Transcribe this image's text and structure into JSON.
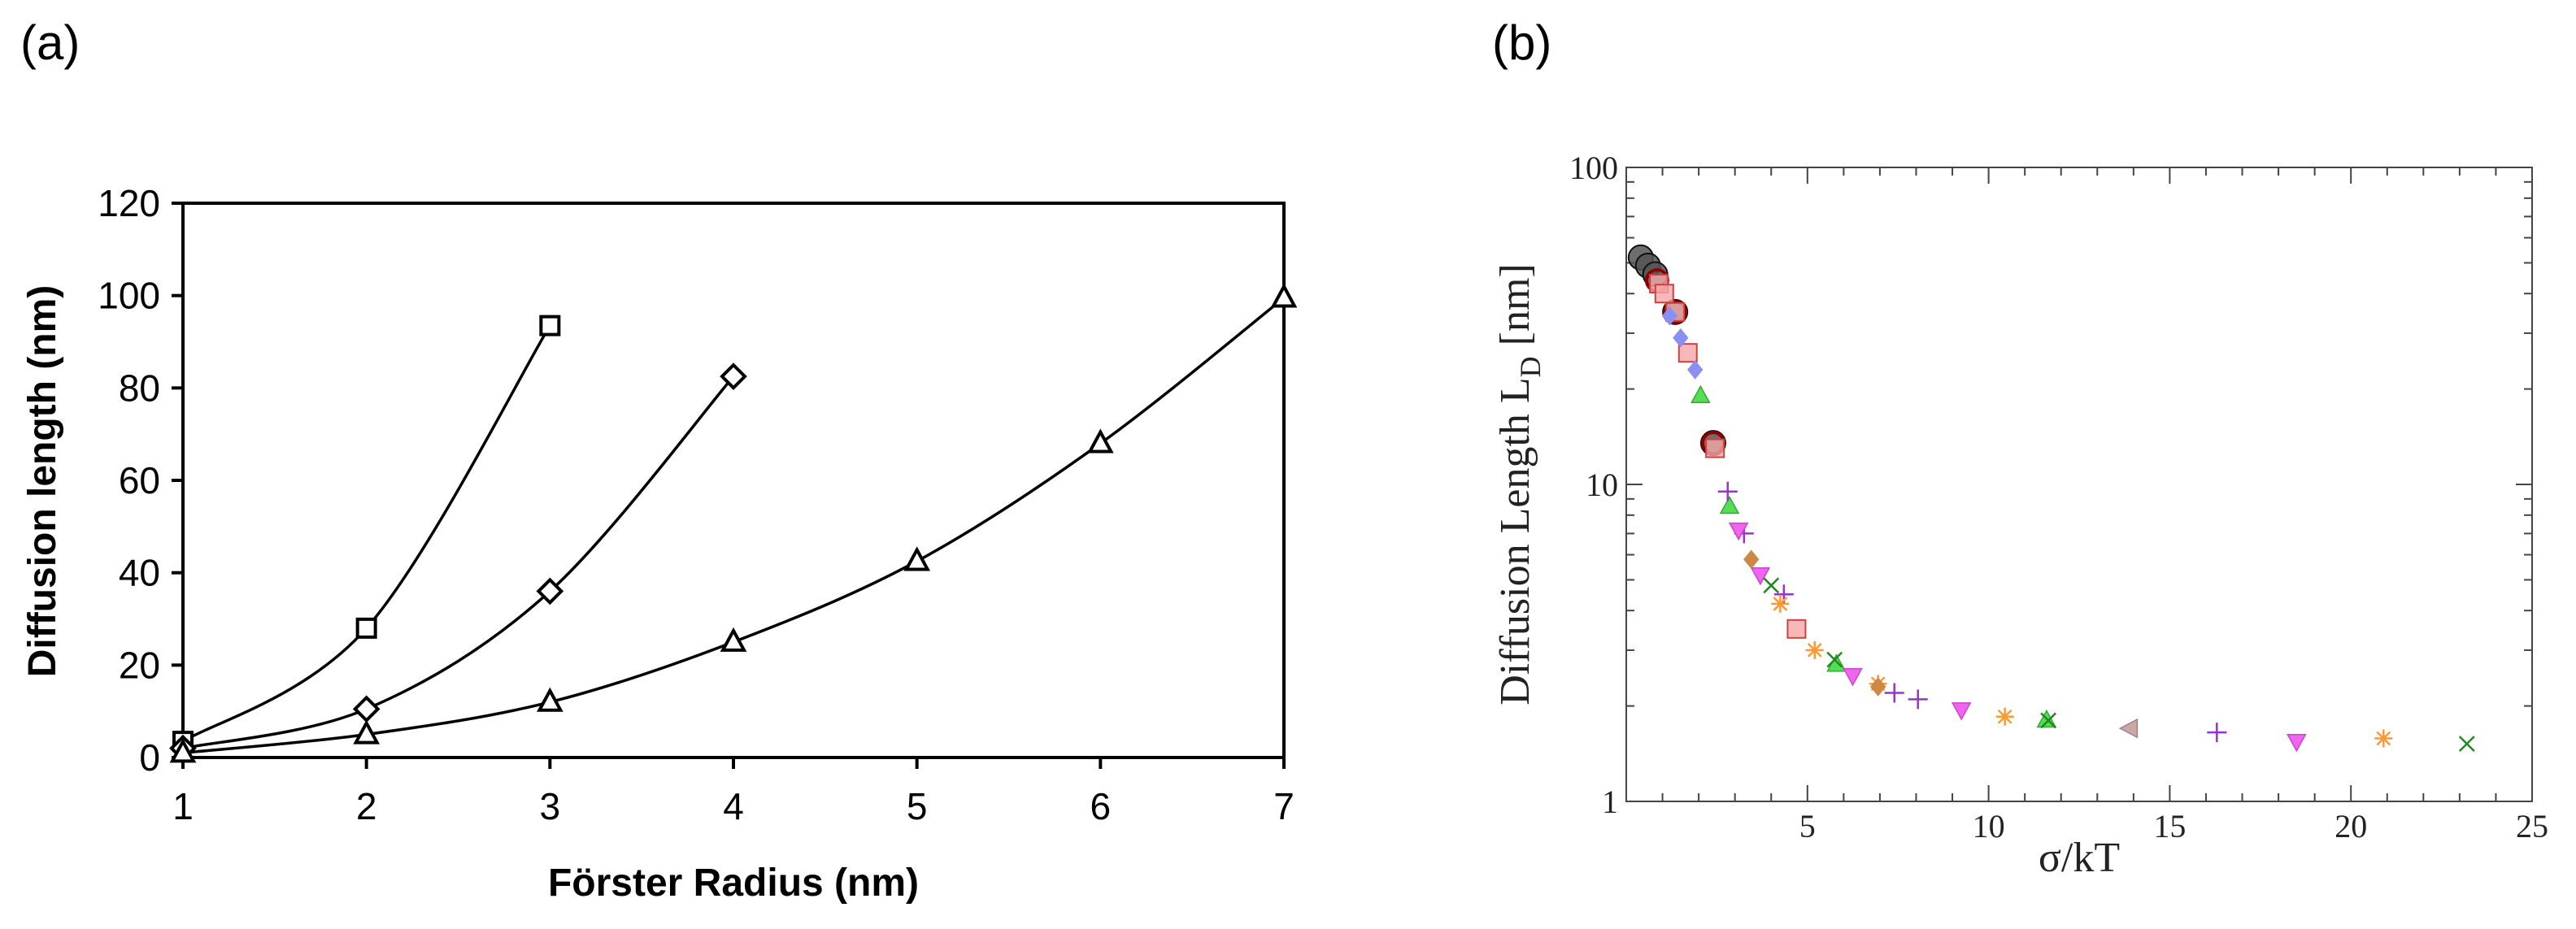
{
  "panels": {
    "a": {
      "label": "(a)"
    },
    "b": {
      "label": "(b)"
    }
  },
  "chart_data": [
    {
      "type": "line",
      "panel": "(a)",
      "xlabel": "Förster Radius (nm)",
      "ylabel": "Diffusion length (nm)",
      "xlim": [
        1,
        7
      ],
      "ylim": [
        0,
        120
      ],
      "xticks": [
        1,
        2,
        3,
        4,
        5,
        6,
        7
      ],
      "yticks": [
        0,
        20,
        40,
        60,
        80,
        100,
        120
      ],
      "grid": false,
      "series": [
        {
          "marker": "square",
          "x": [
            1,
            2,
            3
          ],
          "y": [
            3.5,
            28,
            93.5
          ]
        },
        {
          "marker": "diamond",
          "x": [
            1,
            2,
            3,
            4
          ],
          "y": [
            2,
            10.5,
            36,
            82.5
          ]
        },
        {
          "marker": "triangle",
          "x": [
            1,
            2,
            3,
            4,
            5,
            6,
            7
          ],
          "y": [
            1,
            5,
            12,
            25,
            42.5,
            68,
            99.5
          ]
        }
      ]
    },
    {
      "type": "scatter",
      "panel": "(b)",
      "xlabel": "σ/kT",
      "ylabel": "Diffusion Length L",
      "ylabel_subscript": "D",
      "ylabel_unit": "[nm]",
      "xlim": [
        0,
        25
      ],
      "ylim": [
        1,
        100
      ],
      "yscale": "log",
      "xticks": [
        5,
        10,
        15,
        20,
        25
      ],
      "yticks": [
        1,
        10,
        100
      ],
      "grid": false,
      "series": [
        {
          "marker": "circle",
          "color": "#555555",
          "x": [
            0.4,
            0.6,
            0.8,
            1.35,
            2.4
          ],
          "y": [
            52,
            49,
            46,
            35,
            13.5
          ]
        },
        {
          "marker": "circle-open",
          "color": "#8b0000",
          "x": [
            0.85,
            1.35,
            2.4
          ],
          "y": [
            44,
            35,
            13.5
          ]
        },
        {
          "marker": "square",
          "color": "#f4a6a6",
          "x": [
            0.9,
            1.05,
            1.35,
            1.7,
            2.45,
            4.7
          ],
          "y": [
            43,
            40,
            35,
            26,
            13,
            3.5
          ]
        },
        {
          "marker": "diamond",
          "color": "#8a8ff0",
          "x": [
            1.2,
            1.5,
            1.9
          ],
          "y": [
            34,
            29,
            23
          ]
        },
        {
          "marker": "triangle",
          "color": "#55dd55",
          "x": [
            2.05,
            2.85,
            5.8,
            11.6
          ],
          "y": [
            19,
            8.5,
            2.7,
            1.8
          ]
        },
        {
          "marker": "plus",
          "color": "#9933cc",
          "x": [
            2.8,
            3.25,
            4.35,
            7.4,
            8.05,
            16.3
          ],
          "y": [
            9.5,
            7,
            4.5,
            2.2,
            2.1,
            1.65
          ]
        },
        {
          "marker": "triangle-down",
          "color": "#ee66ee",
          "x": [
            3.1,
            3.7,
            6.25,
            9.25,
            18.5
          ],
          "y": [
            7.2,
            5.2,
            2.5,
            1.95,
            1.55
          ]
        },
        {
          "marker": "x",
          "color": "#228822",
          "x": [
            4.0,
            5.75,
            11.65,
            23.2
          ],
          "y": [
            4.8,
            2.8,
            1.8,
            1.52
          ]
        },
        {
          "marker": "asterisk",
          "color": "#ff9933",
          "x": [
            4.25,
            5.2,
            6.95,
            10.45,
            20.9
          ],
          "y": [
            4.2,
            3.0,
            2.35,
            1.85,
            1.58
          ]
        },
        {
          "marker": "diamond-filled",
          "color": "#cc8844",
          "x": [
            3.45,
            6.95
          ],
          "y": [
            5.8,
            2.3
          ]
        },
        {
          "marker": "triangle-left",
          "color": "#c8a8a8",
          "x": [
            13.9
          ],
          "y": [
            1.7
          ]
        }
      ]
    }
  ]
}
